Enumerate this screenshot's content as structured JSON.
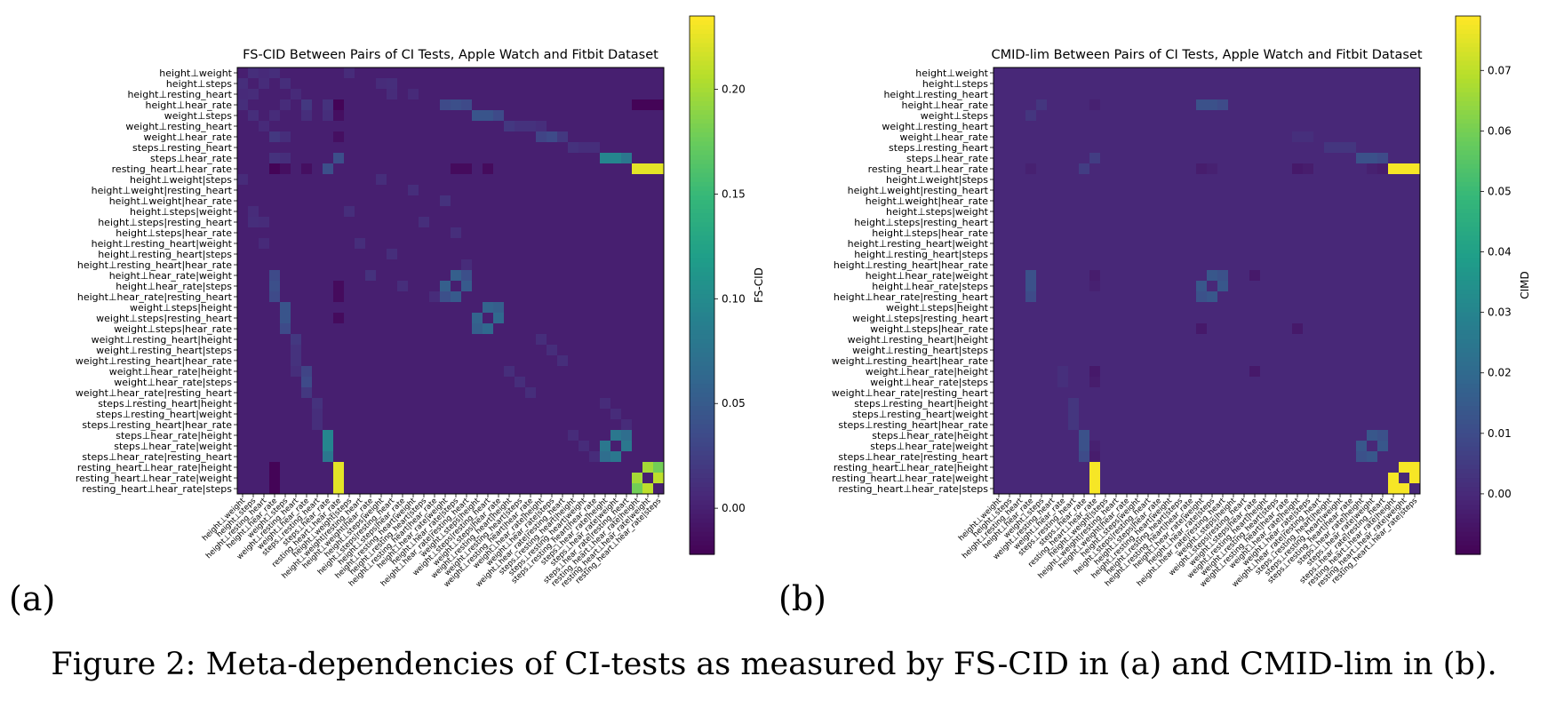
{
  "figure": {
    "caption": "Figure 2: Meta-dependencies of CI-tests as measured by FS-CID in (a) and CMID-lim in (b).",
    "palette": "viridis"
  },
  "ci_tests": [
    "height⊥weight",
    "height⊥steps",
    "height⊥resting_heart",
    "height⊥hear_rate",
    "weight⊥steps",
    "weight⊥resting_heart",
    "weight⊥hear_rate",
    "steps⊥resting_heart",
    "steps⊥hear_rate",
    "resting_heart⊥hear_rate",
    "height⊥weight|steps",
    "height⊥weight|resting_heart",
    "height⊥weight|hear_rate",
    "height⊥steps|weight",
    "height⊥steps|resting_heart",
    "height⊥steps|hear_rate",
    "height⊥resting_heart|weight",
    "height⊥resting_heart|steps",
    "height⊥resting_heart|hear_rate",
    "height⊥hear_rate|weight",
    "height⊥hear_rate|steps",
    "height⊥hear_rate|resting_heart",
    "weight⊥steps|height",
    "weight⊥steps|resting_heart",
    "weight⊥steps|hear_rate",
    "weight⊥resting_heart|height",
    "weight⊥resting_heart|steps",
    "weight⊥resting_heart|hear_rate",
    "weight⊥hear_rate|height",
    "weight⊥hear_rate|steps",
    "weight⊥hear_rate|resting_heart",
    "steps⊥resting_heart|height",
    "steps⊥resting_heart|weight",
    "steps⊥resting_heart|hear_rate",
    "steps⊥hear_rate|height",
    "steps⊥hear_rate|weight",
    "steps⊥hear_rate|resting_heart",
    "resting_heart⊥hear_rate|height",
    "resting_heart⊥hear_rate|weight",
    "resting_heart⊥hear_rate|steps"
  ],
  "chart_data": [
    {
      "type": "heatmap",
      "panel_label": "(a)",
      "title": "FS-CID Between Pairs of CI Tests, Apple Watch and Fitbit Dataset",
      "colorbar_label": "FS-CID",
      "vmin": -0.022,
      "vmax": 0.235,
      "colorbar_ticks": [
        0.0,
        0.05,
        0.1,
        0.15,
        0.2
      ],
      "colorbar_tick_labels": [
        "0.00",
        "0.05",
        "0.10",
        "0.15",
        "0.20"
      ],
      "background_value": 0.0,
      "cells": [
        [
          0,
          1,
          0.012
        ],
        [
          0,
          2,
          0.008
        ],
        [
          1,
          2,
          0.01
        ],
        [
          1,
          4,
          0.012
        ],
        [
          2,
          5,
          0.008
        ],
        [
          0,
          3,
          0.012
        ],
        [
          3,
          4,
          0.01
        ],
        [
          3,
          20,
          0.04
        ],
        [
          3,
          21,
          0.035
        ],
        [
          3,
          19,
          0.035
        ],
        [
          3,
          6,
          0.02
        ],
        [
          3,
          8,
          0.015
        ],
        [
          3,
          9,
          -0.02
        ],
        [
          3,
          37,
          -0.02
        ],
        [
          3,
          38,
          -0.02
        ],
        [
          3,
          39,
          -0.02
        ],
        [
          4,
          22,
          0.045
        ],
        [
          4,
          23,
          0.045
        ],
        [
          4,
          24,
          0.035
        ],
        [
          4,
          6,
          0.012
        ],
        [
          4,
          8,
          0.012
        ],
        [
          4,
          9,
          -0.012
        ],
        [
          5,
          25,
          0.02
        ],
        [
          5,
          26,
          0.015
        ],
        [
          5,
          27,
          0.015
        ],
        [
          6,
          28,
          0.03
        ],
        [
          6,
          29,
          0.035
        ],
        [
          6,
          30,
          0.02
        ],
        [
          7,
          31,
          0.015
        ],
        [
          7,
          32,
          0.012
        ],
        [
          7,
          33,
          0.012
        ],
        [
          8,
          34,
          0.095
        ],
        [
          8,
          35,
          0.095
        ],
        [
          8,
          36,
          0.08
        ],
        [
          8,
          9,
          0.04
        ],
        [
          9,
          37,
          0.225
        ],
        [
          9,
          38,
          0.225
        ],
        [
          9,
          39,
          0.225
        ],
        [
          9,
          23,
          -0.015
        ],
        [
          9,
          20,
          -0.015
        ],
        [
          9,
          6,
          -0.012
        ],
        [
          9,
          21,
          -0.015
        ],
        [
          19,
          20,
          0.055
        ],
        [
          19,
          21,
          0.04
        ],
        [
          20,
          21,
          0.05
        ],
        [
          22,
          23,
          0.06
        ],
        [
          22,
          24,
          0.055
        ],
        [
          23,
          24,
          0.065
        ],
        [
          34,
          35,
          0.08
        ],
        [
          34,
          36,
          0.07
        ],
        [
          35,
          36,
          0.08
        ],
        [
          37,
          38,
          0.2
        ],
        [
          37,
          39,
          0.18
        ],
        [
          38,
          39,
          0.21
        ],
        [
          10,
          13,
          0.012
        ],
        [
          11,
          16,
          0.012
        ],
        [
          12,
          19,
          0.015
        ],
        [
          14,
          17,
          0.012
        ],
        [
          15,
          20,
          0.012
        ],
        [
          18,
          21,
          0.01
        ],
        [
          25,
          28,
          0.012
        ],
        [
          26,
          29,
          0.012
        ],
        [
          27,
          30,
          0.012
        ],
        [
          31,
          34,
          0.01
        ],
        [
          32,
          35,
          0.01
        ],
        [
          33,
          36,
          0.01
        ],
        [
          0,
          10,
          0.01
        ],
        [
          1,
          13,
          0.01
        ],
        [
          2,
          16,
          0.008
        ],
        [
          5,
          28,
          0.012
        ],
        [
          1,
          14,
          0.012
        ],
        [
          2,
          14,
          0.01
        ]
      ],
      "diagonal_value": 0.0
    },
    {
      "type": "heatmap",
      "panel_label": "(b)",
      "title": "CMID-lim Between Pairs of CI Tests, Apple Watch and Fitbit Dataset",
      "colorbar_label": "CIMD",
      "vmin": -0.01,
      "vmax": 0.079,
      "colorbar_ticks": [
        0.0,
        0.01,
        0.02,
        0.03,
        0.04,
        0.05,
        0.06,
        0.07
      ],
      "colorbar_tick_labels": [
        "0.00",
        "0.01",
        "0.02",
        "0.03",
        "0.04",
        "0.05",
        "0.06",
        "0.07"
      ],
      "background_value": 0.0,
      "cells": [
        [
          3,
          19,
          0.012
        ],
        [
          3,
          20,
          0.012
        ],
        [
          3,
          21,
          0.01
        ],
        [
          3,
          4,
          0.004
        ],
        [
          8,
          34,
          0.012
        ],
        [
          8,
          35,
          0.012
        ],
        [
          8,
          36,
          0.01
        ],
        [
          8,
          9,
          0.006
        ],
        [
          9,
          37,
          0.078
        ],
        [
          9,
          38,
          0.078
        ],
        [
          9,
          39,
          0.078
        ],
        [
          19,
          20,
          0.014
        ],
        [
          19,
          21,
          0.012
        ],
        [
          20,
          21,
          0.014
        ],
        [
          34,
          35,
          0.014
        ],
        [
          34,
          36,
          0.012
        ],
        [
          35,
          36,
          0.014
        ],
        [
          37,
          38,
          0.078
        ],
        [
          37,
          39,
          0.078
        ],
        [
          38,
          39,
          0.078
        ],
        [
          7,
          31,
          0.004
        ],
        [
          7,
          32,
          0.004
        ],
        [
          7,
          33,
          0.004
        ],
        [
          6,
          28,
          0.002
        ],
        [
          6,
          29,
          0.002
        ],
        [
          3,
          9,
          -0.002
        ],
        [
          9,
          19,
          -0.003
        ],
        [
          9,
          20,
          -0.002
        ],
        [
          9,
          28,
          -0.004
        ],
        [
          9,
          29,
          -0.003
        ],
        [
          19,
          24,
          -0.004
        ],
        [
          24,
          28,
          -0.004
        ],
        [
          9,
          35,
          -0.002
        ],
        [
          9,
          36,
          -0.003
        ]
      ],
      "diagonal_value": 0.0
    }
  ]
}
